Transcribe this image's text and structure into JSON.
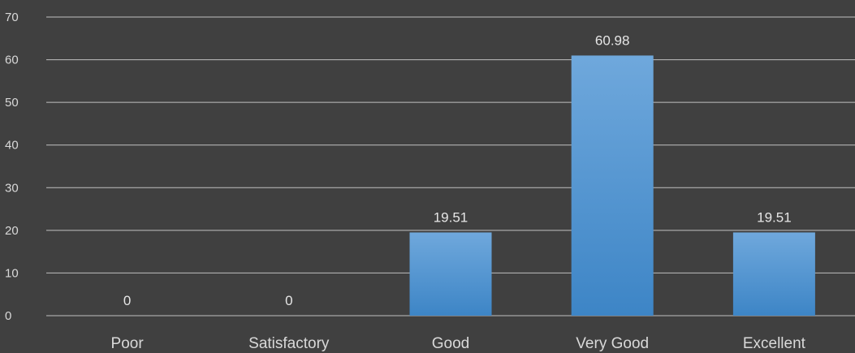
{
  "chart_data": {
    "type": "bar",
    "categories": [
      "Poor",
      "Satisfactory",
      "Good",
      "Very Good",
      "Excellent"
    ],
    "values": [
      0,
      0,
      19.51,
      60.98,
      19.51
    ],
    "data_labels": [
      "0",
      "0",
      "19.51",
      "60.98",
      "19.51"
    ],
    "y_ticks": [
      "0",
      "10",
      "20",
      "30",
      "40",
      "50",
      "60",
      "70"
    ],
    "ylim": [
      0,
      70
    ],
    "grid": true,
    "legend": "none",
    "colors": {
      "background": "#404040",
      "gridline": "#bfbfbf",
      "bar_top": "#6fa8dc",
      "bar_bottom": "#3d85c6",
      "text": "#d9d9d9"
    }
  }
}
